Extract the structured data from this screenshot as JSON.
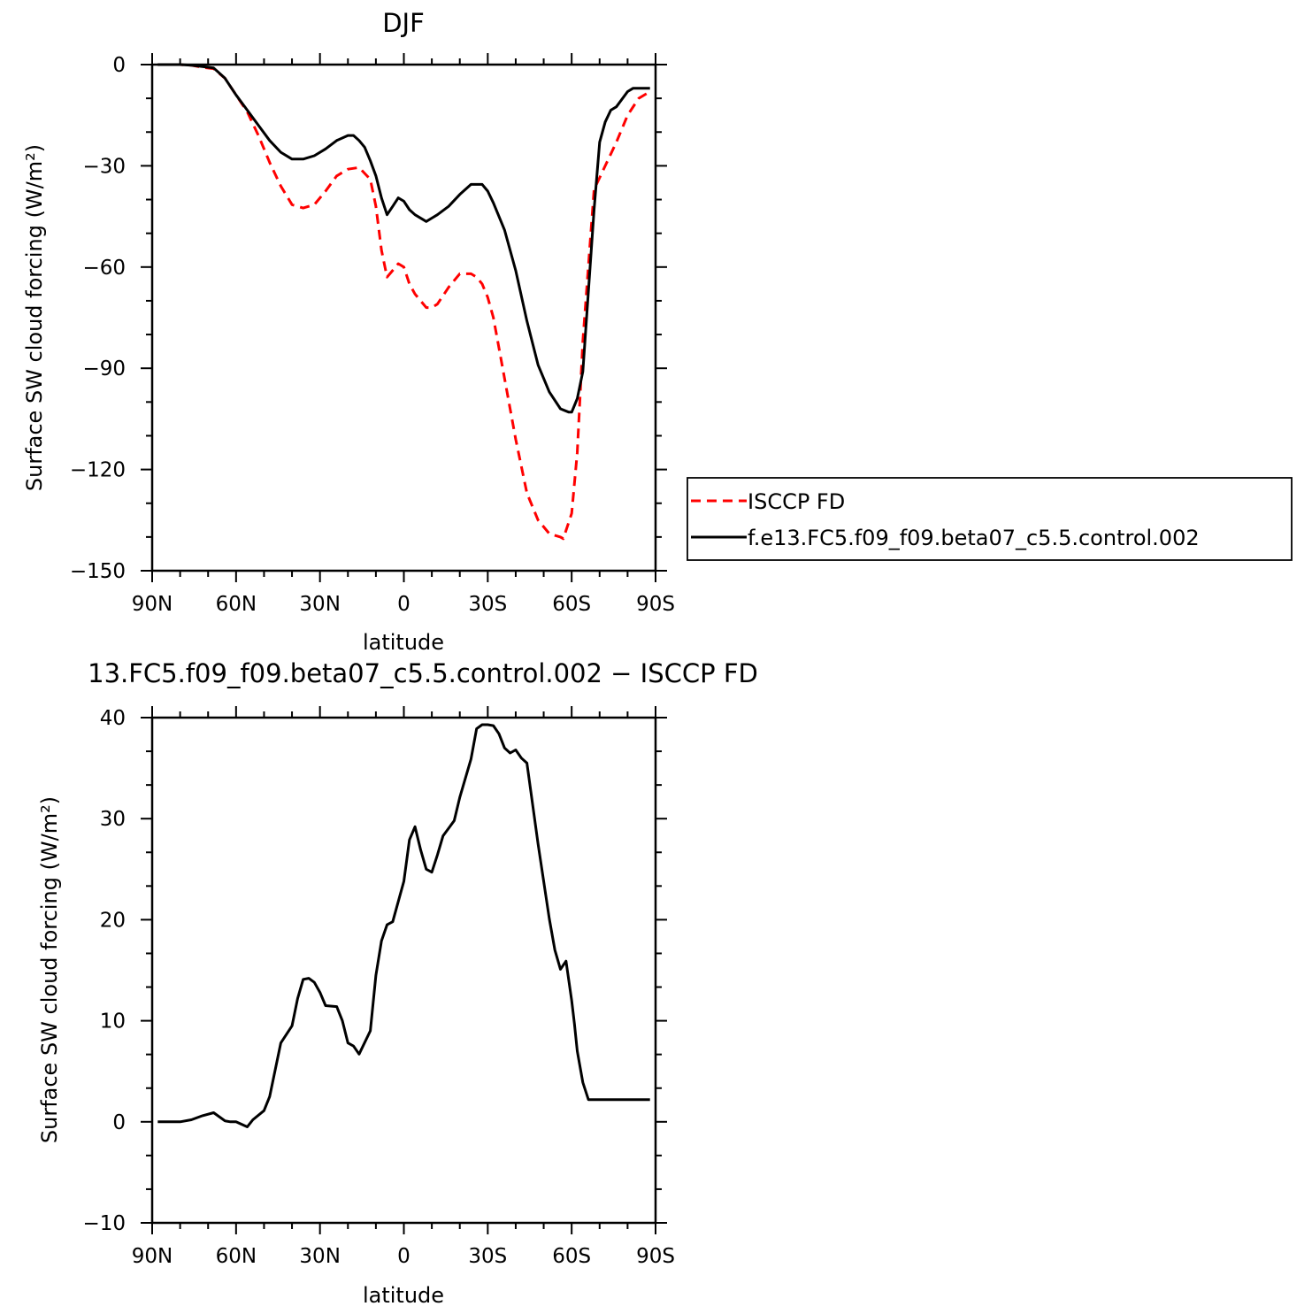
{
  "chart_data": [
    {
      "type": "line",
      "title": "DJF",
      "xlabel": "latitude",
      "ylabel": "Surface SW cloud forcing (W/m²)",
      "xlim": [
        -90,
        90
      ],
      "ylim": [
        -150,
        0
      ],
      "x_ticks": [
        -90,
        -60,
        -30,
        0,
        30,
        60,
        90
      ],
      "x_tick_labels": [
        "90N",
        "60N",
        "30N",
        "0",
        "30S",
        "60S",
        "90S"
      ],
      "y_ticks": [
        0,
        -30,
        -60,
        -90,
        -120,
        -150
      ],
      "y_tick_labels": [
        "0",
        "−30",
        "−60",
        "−90",
        "−120",
        "−150"
      ],
      "legend_position": "right",
      "series": [
        {
          "name": "ISCCP FD",
          "color": "#ff0000",
          "dash": "dashed",
          "x": [
            -88,
            -84,
            -80,
            -76,
            -72,
            -68,
            -64,
            -60,
            -56,
            -52,
            -48,
            -44,
            -40,
            -36,
            -32,
            -28,
            -24,
            -20,
            -16,
            -12,
            -10,
            -8,
            -6,
            -4,
            -2,
            0,
            2,
            4,
            8,
            10,
            12,
            16,
            20,
            22,
            24,
            26,
            28,
            30,
            32,
            36,
            40,
            44,
            48,
            52,
            56,
            57,
            60,
            62,
            64,
            68,
            72,
            76,
            80,
            84,
            88
          ],
          "y": [
            0,
            0,
            0,
            -0.2,
            -0.8,
            -1.2,
            -4,
            -9,
            -14,
            -21,
            -29,
            -36,
            -41.5,
            -42.5,
            -41.5,
            -37.5,
            -33,
            -31,
            -30.5,
            -34,
            -42,
            -55,
            -63,
            -61,
            -59,
            -60,
            -65,
            -68,
            -72,
            -72,
            -71,
            -66,
            -62,
            -62,
            -62,
            -63,
            -65,
            -69,
            -75,
            -93,
            -111,
            -127,
            -135,
            -139,
            -140,
            -140.5,
            -133,
            -115,
            -82,
            -37,
            -30,
            -23,
            -15,
            -10,
            -8
          ]
        },
        {
          "name": "f.e13.FC5.f09_f09.beta07_c5.5.control.002",
          "color": "#000000",
          "dash": "solid",
          "x": [
            -88,
            -84,
            -80,
            -76,
            -72,
            -68,
            -64,
            -60,
            -56,
            -52,
            -48,
            -44,
            -40,
            -36,
            -32,
            -28,
            -24,
            -20,
            -18,
            -16,
            -14,
            -12,
            -10,
            -8,
            -6,
            -4,
            -2,
            0,
            2,
            4,
            8,
            10,
            12,
            16,
            20,
            24,
            26,
            28,
            30,
            32,
            36,
            40,
            44,
            48,
            52,
            56,
            59,
            60,
            62,
            64,
            68,
            70,
            72,
            74,
            76,
            80,
            82,
            84,
            86,
            88
          ],
          "y": [
            0,
            0,
            0,
            -0.2,
            -0.6,
            -1,
            -4,
            -9,
            -13.5,
            -18,
            -22.5,
            -26,
            -28,
            -28,
            -27,
            -25,
            -22.5,
            -21,
            -21,
            -22.5,
            -24.5,
            -28.5,
            -33,
            -39.5,
            -44.5,
            -42,
            -39.5,
            -40.5,
            -43,
            -44.5,
            -46.5,
            -45.5,
            -44.5,
            -42,
            -38.5,
            -35.5,
            -35.5,
            -35.5,
            -37.5,
            -41,
            -49,
            -61,
            -76,
            -89,
            -97,
            -102,
            -103,
            -103,
            -99,
            -91,
            -43,
            -23,
            -17,
            -13.5,
            -12.5,
            -8,
            -7,
            -7,
            -7,
            -7
          ]
        }
      ]
    },
    {
      "type": "line",
      "title": "13.FC5.f09_f09.beta07_c5.5.control.002 − ISCCP FD",
      "xlabel": "latitude",
      "ylabel": "Surface SW cloud forcing (W/m²)",
      "xlim": [
        -90,
        90
      ],
      "ylim": [
        -10,
        40
      ],
      "x_ticks": [
        -90,
        -60,
        -30,
        0,
        30,
        60,
        90
      ],
      "x_tick_labels": [
        "90N",
        "60N",
        "30N",
        "0",
        "30S",
        "60S",
        "90S"
      ],
      "y_ticks": [
        40,
        30,
        20,
        10,
        0,
        -10
      ],
      "y_tick_labels": [
        "40",
        "30",
        "20",
        "10",
        "0",
        "−10"
      ],
      "series": [
        {
          "color": "#000000",
          "dash": "solid",
          "x": [
            -88,
            -84,
            -80,
            -76,
            -72,
            -68,
            -64,
            -62,
            -60,
            -56,
            -54,
            -50,
            -48,
            -44,
            -40,
            -38,
            -36,
            -34,
            -32,
            -30,
            -28,
            -24,
            -22,
            -20,
            -18,
            -16,
            -12,
            -10,
            -8,
            -6,
            -4,
            -2,
            0,
            2,
            4,
            6,
            8,
            10,
            12,
            14,
            18,
            20,
            24,
            26,
            28,
            30,
            32,
            34,
            36,
            38,
            40,
            42,
            44,
            48,
            52,
            54,
            56,
            58,
            60,
            61,
            62,
            64,
            66,
            68,
            70,
            72,
            74,
            76,
            78,
            80,
            82,
            84,
            86,
            88
          ],
          "y": [
            0,
            0,
            0,
            0.2,
            0.6,
            0.9,
            0.1,
            0,
            0,
            -0.5,
            0.2,
            1.1,
            2.5,
            7.8,
            9.5,
            12.2,
            14.1,
            14.2,
            13.8,
            12.8,
            11.5,
            11.4,
            10,
            7.8,
            7.5,
            6.7,
            9,
            14.5,
            17.9,
            19.5,
            19.8,
            21.8,
            23.8,
            27.9,
            29.2,
            26.9,
            25,
            24.7,
            26.4,
            28.3,
            29.8,
            32.1,
            35.9,
            38.9,
            39.3,
            39.3,
            39.2,
            38.4,
            37,
            36.5,
            36.8,
            36,
            35.5,
            27.5,
            20.1,
            17,
            15.1,
            15.9,
            12,
            9.7,
            7,
            3.9,
            2.2,
            2.2,
            2.2,
            2.2,
            2.2,
            2.2,
            2.2,
            2.2,
            2.2,
            2.2,
            2.2,
            2.2
          ]
        }
      ]
    }
  ]
}
